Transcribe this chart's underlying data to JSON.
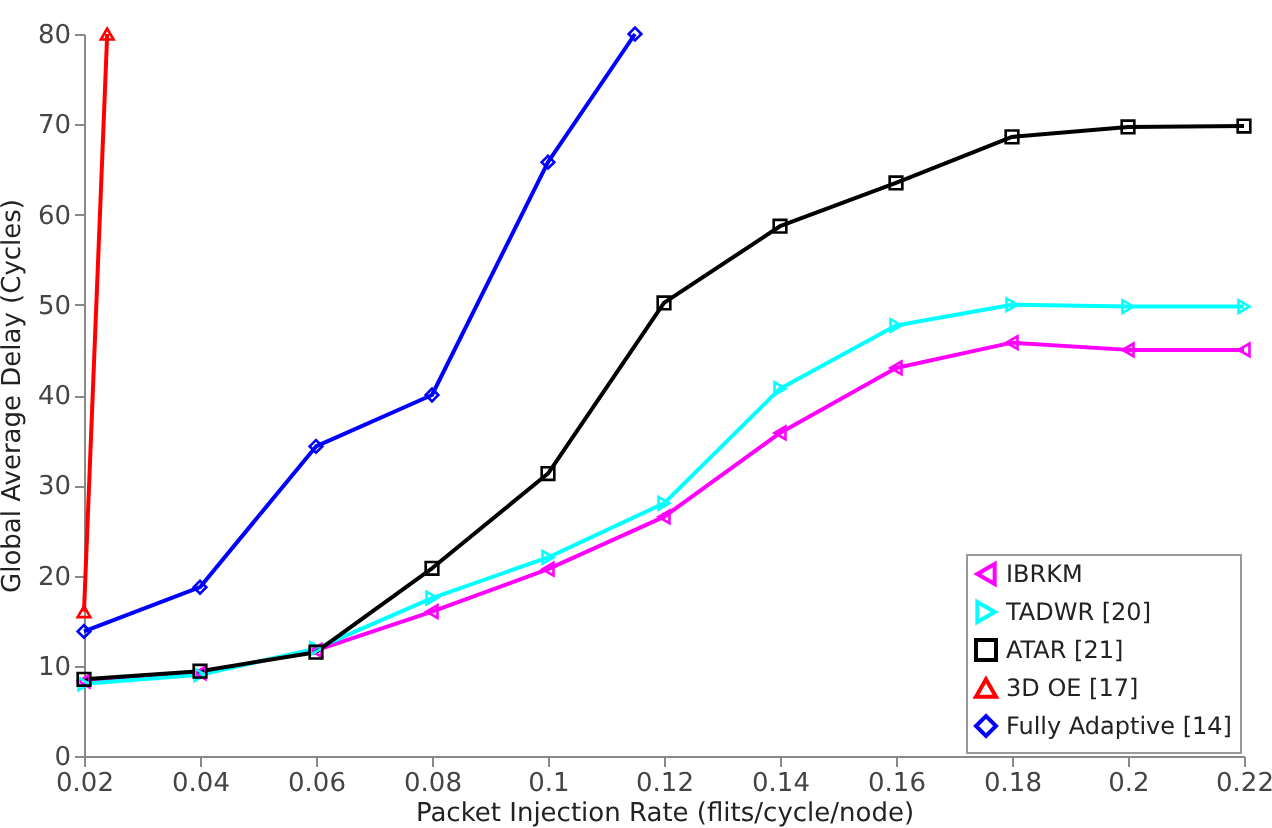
{
  "chart_data": {
    "type": "line",
    "xlabel": "Packet Injection Rate (flits/cycle/node)",
    "ylabel": "Global Average Delay (Cycles)",
    "x": [
      0.02,
      0.04,
      0.06,
      0.08,
      0.1,
      0.12,
      0.14,
      0.16,
      0.18,
      0.2,
      0.22
    ],
    "series": [
      {
        "name": "IBRKM",
        "color": "#ff00ff",
        "marker": "triangle-left",
        "values": [
          8.3,
          9.2,
          11.7,
          16,
          20.7,
          26.5,
          35.8,
          43,
          45.8,
          45,
          45
        ]
      },
      {
        "name": "TADWR [20]",
        "color": "#00ffff",
        "marker": "triangle-right",
        "values": [
          8,
          9,
          11.9,
          17.5,
          22,
          28,
          40.7,
          47.7,
          50,
          49.8,
          49.8
        ]
      },
      {
        "name": "ATAR [21]",
        "color": "#000000",
        "marker": "square",
        "values": [
          8.5,
          9.4,
          11.5,
          20.8,
          31.3,
          50.2,
          58.7,
          63.5,
          68.6,
          69.7,
          69.8
        ]
      },
      {
        "name": "3D OE [17]",
        "color": "#ff0000",
        "marker": "triangle",
        "x": [
          0.02,
          0.024
        ],
        "values": [
          16,
          80
        ]
      },
      {
        "name": "Fully Adaptive [14]",
        "color": "#0000ff",
        "marker": "diamond",
        "x": [
          0.02,
          0.04,
          0.06,
          0.08,
          0.1,
          0.115
        ],
        "values": [
          13.8,
          18.7,
          34.3,
          40,
          65.8,
          80
        ]
      }
    ],
    "xlim": [
      0.02,
      0.22
    ],
    "xticks": [
      0.02,
      0.04,
      0.06,
      0.08,
      0.1,
      0.12,
      0.14,
      0.16,
      0.18,
      0.2,
      0.22
    ],
    "ylim": [
      0,
      80
    ],
    "yticks": [
      0,
      10,
      20,
      30,
      40,
      50,
      60,
      70,
      80
    ],
    "legend": "bottom right",
    "grid": false,
    "line_style": "solid"
  }
}
